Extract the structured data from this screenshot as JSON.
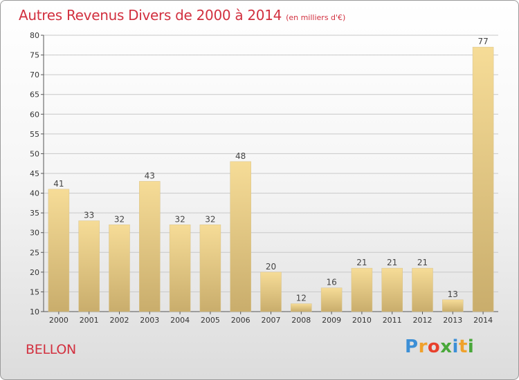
{
  "title": "Autres Revenus Divers de 2000 à 2014",
  "subtitle": "(en milliers d'€)",
  "commune": "BELLON",
  "logo": {
    "letters": [
      "P",
      "r",
      "o",
      "x",
      "i",
      "t",
      "i"
    ],
    "colors": [
      "#3c8fd6",
      "#f0a12b",
      "#e8402c",
      "#49a83a",
      "#3c8fd6",
      "#f0a12b",
      "#49a83a"
    ]
  },
  "colors": {
    "title": "#d2303f",
    "bar_light": "#f6dc97",
    "bar_dark": "#c9ad6c",
    "grid": "#c8c8c8"
  },
  "chart_data": {
    "type": "bar",
    "categories": [
      "2000",
      "2001",
      "2002",
      "2003",
      "2004",
      "2005",
      "2006",
      "2007",
      "2008",
      "2009",
      "2010",
      "2011",
      "2012",
      "2013",
      "2014"
    ],
    "values": [
      41,
      33,
      32,
      43,
      32,
      32,
      48,
      20,
      12,
      16,
      21,
      21,
      21,
      13,
      77
    ],
    "ylim": [
      10,
      80
    ],
    "yticks": [
      10,
      15,
      20,
      25,
      30,
      35,
      40,
      45,
      50,
      55,
      60,
      65,
      70,
      75,
      80
    ],
    "grid": true,
    "xlabel": "",
    "ylabel": ""
  }
}
